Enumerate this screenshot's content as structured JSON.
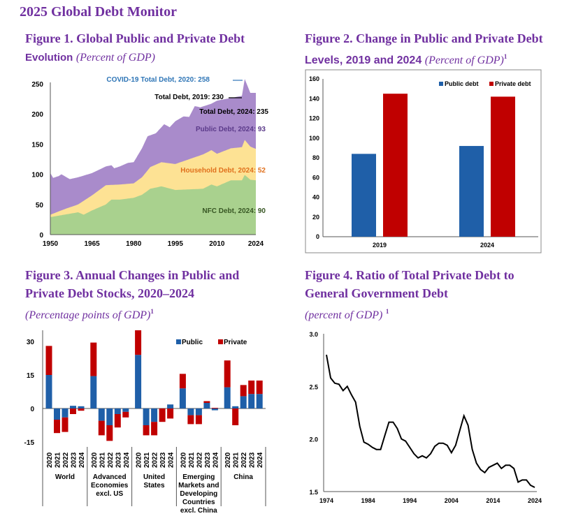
{
  "title": "2025 Global Debt Monitor",
  "fig1": {
    "title": "Figure 1. Global Public and Private Debt",
    "title2": "Evolution",
    "unit": "(Percent of GDP)"
  },
  "fig2": {
    "title": "Figure 2. Change in Public and Private Debt",
    "title2": "Levels, 2019 and 2024",
    "unit": "(Percent of GDP)",
    "sup": "1"
  },
  "fig3": {
    "title": "Figure 3. Annual Changes in Public and",
    "title2": "Private Debt Stocks, 2020–2024",
    "unit": "(Percentage points of GDP)",
    "sup": "1"
  },
  "fig4": {
    "title": "Figure 4. Ratio of Total Private Debt to",
    "title2": "General Government Debt",
    "unit": "(percent of GDP)",
    "sup": "1"
  },
  "colors": {
    "purple": "#7030a0",
    "public_area": "#a98bcb",
    "household_area": "#fde294",
    "nfc_area": "#a9d18e",
    "public_bar": "#1f5fa8",
    "private_bar": "#c00000"
  },
  "chart_data": [
    {
      "type": "area",
      "xlim": [
        1950,
        2024
      ],
      "ylim": [
        0,
        250
      ],
      "xticks": [
        "1950",
        "1965",
        "1980",
        "1995",
        "2010",
        "2024"
      ],
      "yticks": [
        "0",
        "50",
        "100",
        "150",
        "200",
        "250"
      ],
      "series": [
        {
          "name": "NFC",
          "points": [
            [
              1950,
              29
            ],
            [
              1955,
              33
            ],
            [
              1960,
              37
            ],
            [
              1962,
              33
            ],
            [
              1965,
              40
            ],
            [
              1970,
              50
            ],
            [
              1972,
              58
            ],
            [
              1975,
              58
            ],
            [
              1980,
              61
            ],
            [
              1983,
              66
            ],
            [
              1986,
              76
            ],
            [
              1990,
              80
            ],
            [
              1995,
              74
            ],
            [
              2000,
              75
            ],
            [
              2005,
              76
            ],
            [
              2008,
              83
            ],
            [
              2010,
              80
            ],
            [
              2015,
              90
            ],
            [
              2019,
              90
            ],
            [
              2020,
              99
            ],
            [
              2022,
              91
            ],
            [
              2024,
              90
            ]
          ]
        },
        {
          "name": "Household (cumulative)",
          "points": [
            [
              1950,
              33
            ],
            [
              1955,
              42
            ],
            [
              1960,
              50
            ],
            [
              1965,
              65
            ],
            [
              1970,
              82
            ],
            [
              1975,
              83
            ],
            [
              1980,
              85
            ],
            [
              1983,
              95
            ],
            [
              1986,
              112
            ],
            [
              1990,
              120
            ],
            [
              1995,
              117
            ],
            [
              2000,
              125
            ],
            [
              2005,
              133
            ],
            [
              2008,
              140
            ],
            [
              2010,
              134
            ],
            [
              2015,
              143
            ],
            [
              2019,
              145
            ],
            [
              2020,
              157
            ],
            [
              2022,
              146
            ],
            [
              2024,
              142
            ]
          ]
        },
        {
          "name": "Total",
          "points": [
            [
              1950,
              102
            ],
            [
              1951,
              94
            ],
            [
              1953,
              97
            ],
            [
              1954,
              100
            ],
            [
              1957,
              92
            ],
            [
              1960,
              95
            ],
            [
              1965,
              102
            ],
            [
              1970,
              113
            ],
            [
              1972,
              115
            ],
            [
              1973,
              110
            ],
            [
              1975,
              113
            ],
            [
              1978,
              119
            ],
            [
              1980,
              120
            ],
            [
              1983,
              143
            ],
            [
              1985,
              163
            ],
            [
              1988,
              168
            ],
            [
              1991,
              183
            ],
            [
              1993,
              178
            ],
            [
              1995,
              188
            ],
            [
              1998,
              196
            ],
            [
              2000,
              195
            ],
            [
              2002,
              213
            ],
            [
              2004,
              211
            ],
            [
              2008,
              217
            ],
            [
              2010,
              222
            ],
            [
              2019,
              230
            ],
            [
              2020,
              258
            ],
            [
              2022,
              235
            ],
            [
              2024,
              235
            ]
          ]
        }
      ],
      "annotations": {
        "covid": "COVID-19 Total Debt, 2020: 258",
        "total2019": "Total Debt, 2019: 230",
        "total2024": "Total Debt, 2024: 235",
        "public2024": "Public Debt, 2024: 93",
        "household2024": "Household Debt, 2024: 52",
        "nfc2024": "NFC Debt, 2024: 90"
      }
    },
    {
      "type": "bar",
      "categories": [
        "2019",
        "2024"
      ],
      "ylim": [
        0,
        160
      ],
      "yticks": [
        "0",
        "20",
        "40",
        "60",
        "80",
        "100",
        "120",
        "140",
        "160"
      ],
      "series": [
        {
          "name": "Public debt",
          "values": [
            84,
            92
          ]
        },
        {
          "name": "Private debt",
          "values": [
            145,
            142
          ]
        }
      ]
    },
    {
      "type": "bar",
      "stacked": true,
      "ylim": [
        -15,
        35
      ],
      "yticks": [
        "-15",
        "0",
        "15",
        "30"
      ],
      "years": [
        "2020",
        "2021",
        "2022",
        "2023",
        "2024"
      ],
      "groups": [
        {
          "name": [
            "World"
          ],
          "public": [
            15,
            -5,
            -4,
            1.2,
            1
          ],
          "private": [
            13,
            -6,
            -6.5,
            -2.5,
            -1
          ]
        },
        {
          "name": [
            "Advanced",
            "Economies",
            "excl. US"
          ],
          "public": [
            14.5,
            -5.5,
            -7.5,
            -2.5,
            -1.5
          ],
          "private": [
            15,
            -6.5,
            -7,
            -6,
            -2.5
          ]
        },
        {
          "name": [
            "United",
            "States"
          ],
          "public": [
            24,
            -7.5,
            -6,
            0,
            1.8
          ],
          "private": [
            11,
            -4.5,
            -6,
            -6,
            -4.5
          ]
        },
        {
          "name": [
            "Emerging",
            "Markets and",
            "Developing",
            "Countries",
            "excl. China"
          ],
          "public": [
            9,
            -3,
            -3,
            2.5,
            -0.8
          ],
          "private": [
            6.5,
            -4,
            -4,
            0.8,
            0.3
          ]
        },
        {
          "name": [
            "China"
          ],
          "public": [
            9.5,
            1,
            5.5,
            6.5,
            6.5
          ],
          "private": [
            12,
            -7.5,
            5,
            6,
            6
          ]
        }
      ],
      "legend": [
        "Public",
        "Private"
      ]
    },
    {
      "type": "line",
      "xlim": [
        1974,
        2024
      ],
      "ylim": [
        1.5,
        3.0
      ],
      "xticks": [
        "1974",
        "1984",
        "1994",
        "2004",
        "2014",
        "2024"
      ],
      "yticks": [
        "1.5",
        "2.0",
        "2.5",
        "3.0"
      ],
      "x_start": 1974,
      "values": [
        2.8,
        2.58,
        2.53,
        2.52,
        2.46,
        2.5,
        2.42,
        2.35,
        2.12,
        1.97,
        1.95,
        1.92,
        1.9,
        1.9,
        2.03,
        2.16,
        2.16,
        2.1,
        2.0,
        1.98,
        1.92,
        1.86,
        1.82,
        1.84,
        1.82,
        1.86,
        1.93,
        1.96,
        1.96,
        1.94,
        1.87,
        1.94,
        2.08,
        2.22,
        2.13,
        1.9,
        1.77,
        1.71,
        1.68,
        1.73,
        1.75,
        1.77,
        1.72,
        1.75,
        1.75,
        1.72,
        1.59,
        1.61,
        1.61,
        1.56,
        1.54
      ]
    }
  ]
}
